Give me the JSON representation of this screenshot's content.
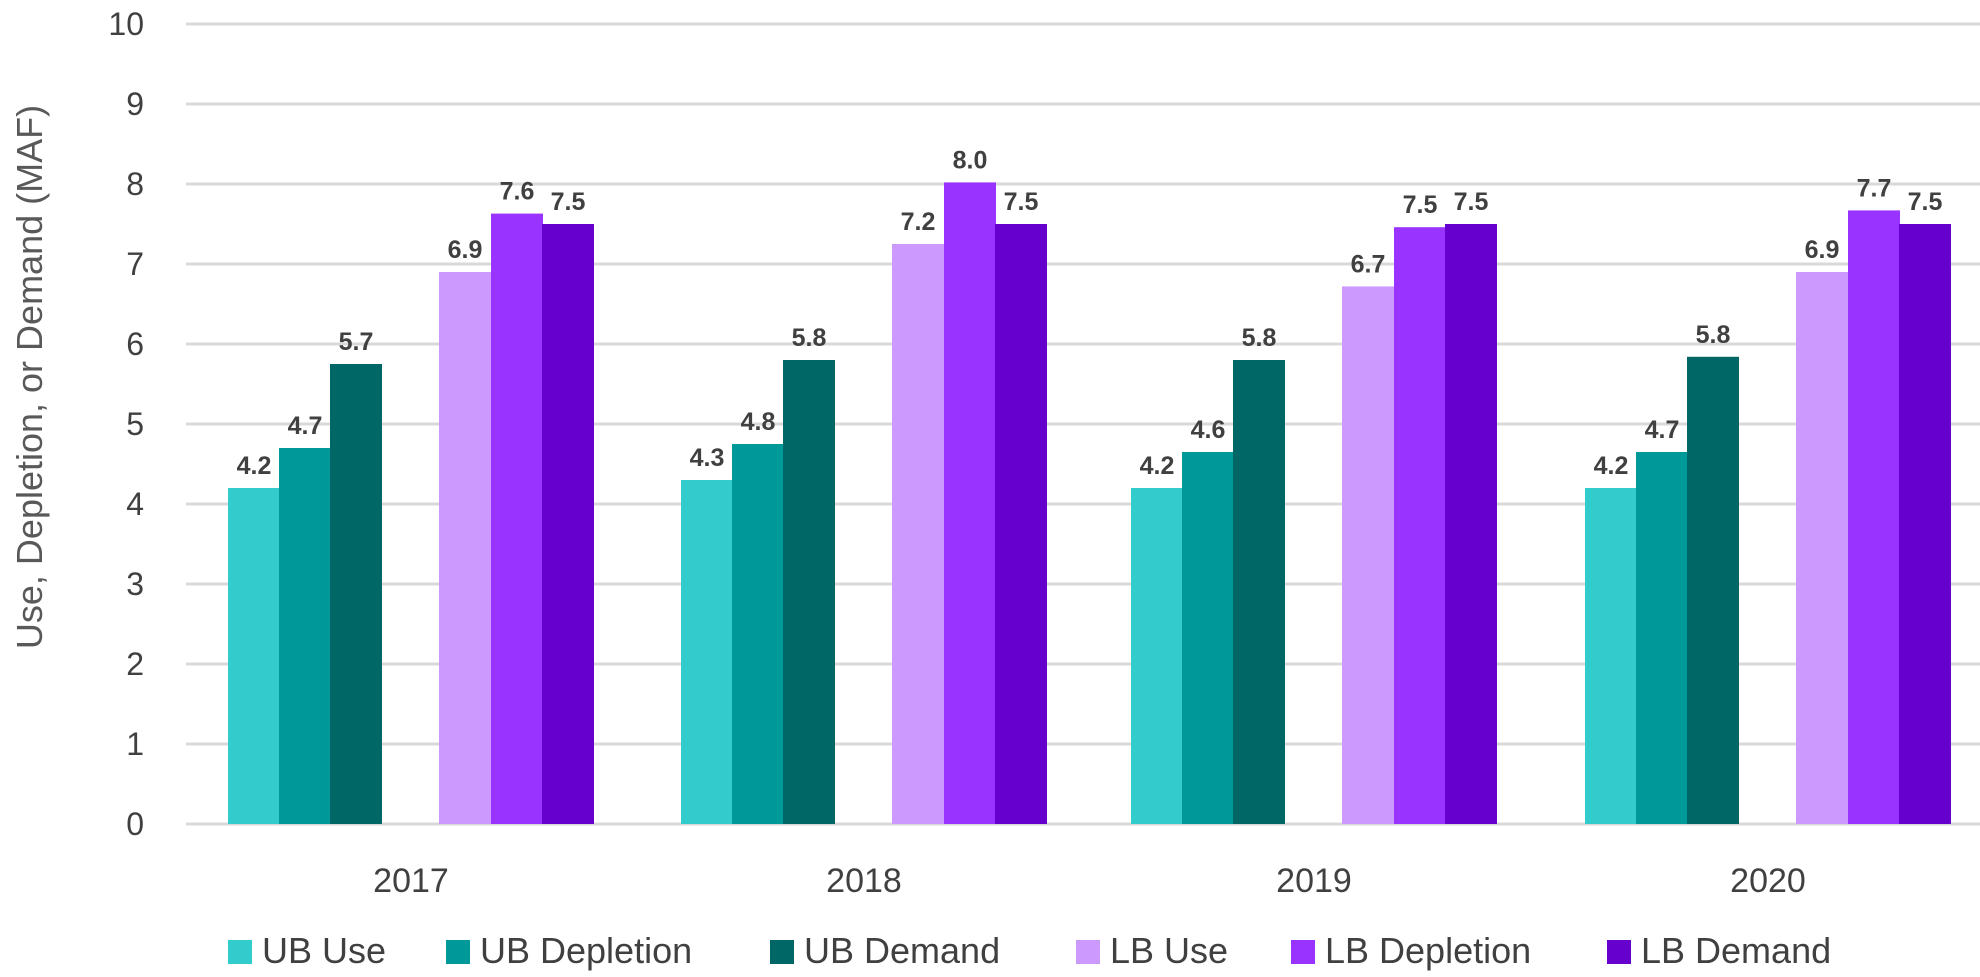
{
  "chart_data": {
    "type": "bar",
    "title": "",
    "xlabel": "",
    "ylabel": "Use, Depletion, or Demand (MAF)",
    "ylim": [
      0,
      10
    ],
    "yticks": [
      0,
      1,
      2,
      3,
      4,
      5,
      6,
      7,
      8,
      9,
      10
    ],
    "grid": true,
    "legend_position": "bottom",
    "categories": [
      "2017",
      "2018",
      "2019",
      "2020"
    ],
    "series": [
      {
        "name": "UB Use",
        "color": "#33CCCC",
        "values": [
          4.2,
          4.3,
          4.2,
          4.2
        ],
        "labels": [
          "4.2",
          "4.3",
          "4.2",
          "4.2"
        ]
      },
      {
        "name": "UB Depletion",
        "color": "#009999",
        "values": [
          4.7,
          4.75,
          4.65,
          4.65
        ],
        "labels": [
          "4.7",
          "4.8",
          "4.6",
          "4.7"
        ]
      },
      {
        "name": "UB Demand",
        "color": "#006666",
        "values": [
          5.75,
          5.8,
          5.8,
          5.84
        ],
        "labels": [
          "5.7",
          "5.8",
          "5.8",
          "5.8"
        ]
      },
      {
        "name": "LB Use",
        "color": "#CC99FF",
        "values": [
          6.9,
          7.25,
          6.72,
          6.9
        ],
        "labels": [
          "6.9",
          "7.2",
          "6.7",
          "6.9"
        ]
      },
      {
        "name": "LB Depletion",
        "color": "#9933FF",
        "values": [
          7.63,
          8.02,
          7.46,
          7.67
        ],
        "labels": [
          "7.6",
          "8.0",
          "7.5",
          "7.7"
        ]
      },
      {
        "name": "LB Demand",
        "color": "#6600CC",
        "values": [
          7.5,
          7.5,
          7.5,
          7.5
        ],
        "labels": [
          "7.5",
          "7.5",
          "7.5",
          "7.5"
        ]
      }
    ]
  }
}
